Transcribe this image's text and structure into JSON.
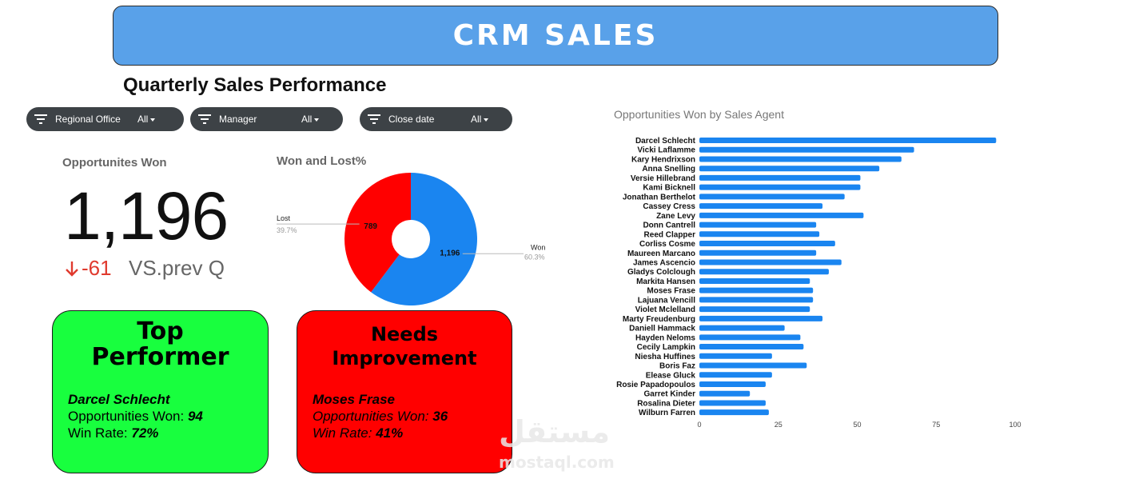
{
  "banner": {
    "title": "CRM SALES"
  },
  "page_title": "Quarterly Sales Performance",
  "filters": [
    {
      "label": "Regional Office",
      "value": "All"
    },
    {
      "label": "Manager",
      "value": "All"
    },
    {
      "label": "Close date",
      "value": "All"
    }
  ],
  "kpi": {
    "title": "Opportunites Won",
    "value": "1,196",
    "delta": "-61",
    "compare_label": "VS.prev Q",
    "delta_color": "#e03a2e"
  },
  "colors": {
    "won": "#1a85f0",
    "lost": "#ff0000",
    "bar": "#1a85f0",
    "top": "#18ff3e",
    "needs": "#ff0000",
    "banner": "#59a1e9"
  },
  "top_card": {
    "heading_line1": "Top",
    "heading_line2": "Performer",
    "name": "Darcel Schlecht",
    "won_label": "Opportunities Won:",
    "won_value": "94",
    "rate_label": "Win Rate:",
    "rate_value": "72%"
  },
  "needs_card": {
    "heading_line1": "Needs",
    "heading_line2": "Improvement",
    "name": "Moses Frase",
    "won_label": "Opportunities Won:",
    "won_value": "36",
    "rate_label": "Win Rate:",
    "rate_value": "41%"
  },
  "watermark": {
    "arabic": "مستقل",
    "latin": "mostaql.com"
  },
  "chart_data": [
    {
      "type": "pie",
      "title": "Won and Lost%",
      "donut": true,
      "slices": [
        {
          "name": "Won",
          "value": 1196,
          "value_label": "1,196",
          "percent_label": "60.3%"
        },
        {
          "name": "Lost",
          "value": 789,
          "value_label": "789",
          "percent_label": "39.7%"
        }
      ]
    },
    {
      "type": "bar",
      "orientation": "horizontal",
      "title": "Opportunities Won by Sales Agent",
      "xlim": [
        0,
        100
      ],
      "xticks": [
        0,
        25,
        50,
        75,
        100
      ],
      "grid": false,
      "categories": [
        "Darcel Schlecht",
        "Vicki Laflamme",
        "Kary Hendrixson",
        "Anna Snelling",
        "Versie Hillebrand",
        "Kami Bicknell",
        "Jonathan Berthelot",
        "Cassey Cress",
        "Zane Levy",
        "Donn Cantrell",
        "Reed Clapper",
        "Corliss Cosme",
        "Maureen Marcano",
        "James Ascencio",
        "Gladys Colclough",
        "Markita Hansen",
        "Moses Frase",
        "Lajuana Vencill",
        "Violet Mclelland",
        "Marty Freudenburg",
        "Daniell Hammack",
        "Hayden Neloms",
        "Cecily Lampkin",
        "Niesha Huffines",
        "Boris Faz",
        "Elease Gluck",
        "Rosie Papadopoulos",
        "Garret Kinder",
        "Rosalina Dieter",
        "Wilburn Farren"
      ],
      "values": [
        94,
        68,
        64,
        57,
        51,
        51,
        46,
        39,
        52,
        37,
        38,
        43,
        37,
        45,
        41,
        35,
        36,
        36,
        35,
        39,
        27,
        32,
        33,
        23,
        34,
        23,
        21,
        16,
        21,
        22
      ]
    }
  ]
}
